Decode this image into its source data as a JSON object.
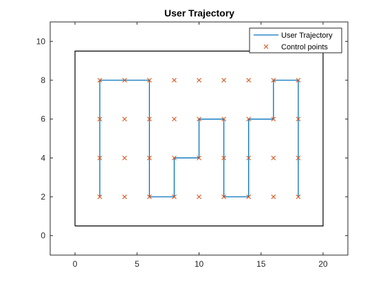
{
  "chart_data": {
    "type": "line",
    "title": "User Trajectory",
    "xlabel": "",
    "ylabel": "",
    "xlim": [
      -2,
      22
    ],
    "ylim": [
      -1,
      11
    ],
    "xticks": [
      0,
      5,
      10,
      15,
      20
    ],
    "yticks": [
      0,
      2,
      4,
      6,
      8,
      10
    ],
    "grid": false,
    "legend_position": "top-right",
    "boundary": {
      "x": [
        0,
        20,
        20,
        0,
        0
      ],
      "y": [
        0.5,
        0.5,
        9.5,
        9.5,
        0.5
      ],
      "color": "#000000"
    },
    "series": [
      {
        "name": "User Trajectory",
        "style": "line",
        "color": "#0072BD",
        "x": [
          2,
          2,
          2,
          2,
          4,
          6,
          6,
          6,
          6,
          8,
          8,
          8,
          10,
          10,
          12,
          12,
          12,
          12,
          14,
          14,
          14,
          16,
          16,
          18,
          18,
          18,
          18
        ],
        "y": [
          2,
          4,
          6,
          8,
          8,
          8,
          6,
          4,
          2,
          2,
          4,
          4,
          4,
          6,
          6,
          4,
          2,
          2,
          2,
          4,
          6,
          6,
          8,
          8,
          6,
          4,
          2
        ]
      },
      {
        "name": "Control points",
        "style": "marker-x",
        "color": "#D95319",
        "x": [
          2,
          4,
          6,
          8,
          10,
          12,
          14,
          16,
          18,
          2,
          4,
          6,
          8,
          10,
          12,
          14,
          16,
          18,
          2,
          4,
          6,
          8,
          10,
          12,
          14,
          16,
          18,
          2,
          4,
          6,
          8,
          10,
          12,
          14,
          16,
          18
        ],
        "y": [
          2,
          2,
          2,
          2,
          2,
          2,
          2,
          2,
          2,
          4,
          4,
          4,
          4,
          4,
          4,
          4,
          4,
          4,
          6,
          6,
          6,
          6,
          6,
          6,
          6,
          6,
          6,
          8,
          8,
          8,
          8,
          8,
          8,
          8,
          8,
          8
        ]
      }
    ]
  }
}
